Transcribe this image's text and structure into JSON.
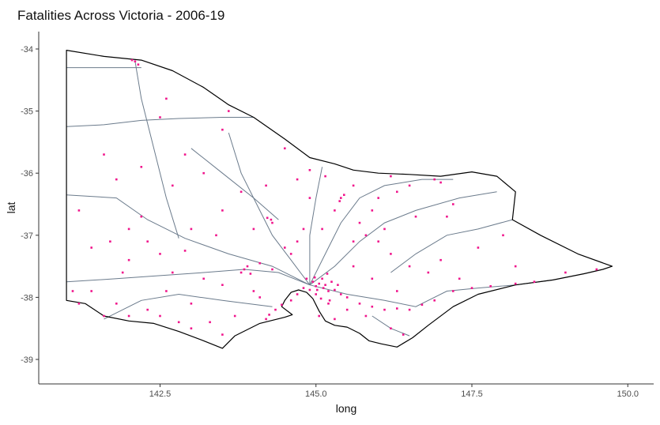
{
  "chart_data": {
    "type": "scatter",
    "title": "Fatalities Across Victoria - 2006-19",
    "xlabel": "long",
    "ylabel": "lat",
    "xlim": [
      40.6,
      150.4
    ],
    "ylim": [
      -39.38,
      -33.72
    ],
    "xticks": [
      142.5,
      145.0,
      147.5,
      150.0
    ],
    "xtick_labels": [
      "142.5",
      "145.0",
      "147.5",
      "150.0"
    ],
    "yticks": [
      -34,
      -35,
      -36,
      -37,
      -38,
      -39
    ],
    "ytick_labels": [
      "-34",
      "-35",
      "-36",
      "-37",
      "-38",
      "-39"
    ],
    "grid": false,
    "colors": {
      "points": "#f0158c",
      "border": "#000000",
      "roads": "#6b7b8c",
      "axis": "#333333"
    },
    "border": [
      [
        141.0,
        -34.02
      ],
      [
        141.6,
        -34.12
      ],
      [
        142.2,
        -34.18
      ],
      [
        142.7,
        -34.35
      ],
      [
        143.2,
        -34.62
      ],
      [
        143.6,
        -34.9
      ],
      [
        144.0,
        -35.1
      ],
      [
        144.5,
        -35.45
      ],
      [
        144.9,
        -35.75
      ],
      [
        145.3,
        -35.85
      ],
      [
        145.6,
        -35.95
      ],
      [
        146.0,
        -36.0
      ],
      [
        146.5,
        -36.02
      ],
      [
        147.0,
        -36.05
      ],
      [
        147.5,
        -35.98
      ],
      [
        147.9,
        -36.05
      ],
      [
        148.2,
        -36.3
      ],
      [
        148.15,
        -36.75
      ],
      [
        148.6,
        -37.0
      ],
      [
        149.2,
        -37.3
      ],
      [
        149.75,
        -37.5
      ],
      [
        149.6,
        -37.55
      ],
      [
        149.3,
        -37.62
      ],
      [
        148.8,
        -37.72
      ],
      [
        148.2,
        -37.8
      ],
      [
        147.6,
        -37.95
      ],
      [
        147.2,
        -38.15
      ],
      [
        146.8,
        -38.45
      ],
      [
        146.55,
        -38.65
      ],
      [
        146.3,
        -38.8
      ],
      [
        146.05,
        -38.75
      ],
      [
        145.85,
        -38.7
      ],
      [
        145.7,
        -38.58
      ],
      [
        145.5,
        -38.48
      ],
      [
        145.3,
        -38.45
      ],
      [
        145.15,
        -38.38
      ],
      [
        145.05,
        -38.22
      ],
      [
        144.95,
        -38.02
      ],
      [
        144.85,
        -37.92
      ],
      [
        144.72,
        -37.88
      ],
      [
        144.6,
        -37.92
      ],
      [
        144.5,
        -38.05
      ],
      [
        144.45,
        -38.15
      ],
      [
        144.62,
        -38.28
      ],
      [
        144.5,
        -38.32
      ],
      [
        144.1,
        -38.42
      ],
      [
        143.7,
        -38.62
      ],
      [
        143.5,
        -38.82
      ],
      [
        143.2,
        -38.7
      ],
      [
        142.8,
        -38.55
      ],
      [
        142.4,
        -38.42
      ],
      [
        142.0,
        -38.38
      ],
      [
        141.6,
        -38.3
      ],
      [
        141.3,
        -38.1
      ],
      [
        141.0,
        -38.05
      ],
      [
        141.0,
        -34.02
      ]
    ],
    "roads": [
      [
        [
          141.0,
          -34.3
        ],
        [
          141.6,
          -34.3
        ],
        [
          142.2,
          -34.3
        ]
      ],
      [
        [
          141.0,
          -35.25
        ],
        [
          141.6,
          -35.22
        ],
        [
          142.2,
          -35.15
        ],
        [
          142.8,
          -35.12
        ],
        [
          143.5,
          -35.1
        ],
        [
          144.0,
          -35.1
        ]
      ],
      [
        [
          141.0,
          -36.35
        ],
        [
          141.8,
          -36.4
        ],
        [
          142.3,
          -36.75
        ],
        [
          142.9,
          -37.05
        ],
        [
          143.6,
          -37.3
        ],
        [
          144.3,
          -37.5
        ],
        [
          144.9,
          -37.8
        ]
      ],
      [
        [
          141.0,
          -37.75
        ],
        [
          141.8,
          -37.7
        ],
        [
          142.5,
          -37.65
        ],
        [
          143.2,
          -37.6
        ],
        [
          143.85,
          -37.55
        ],
        [
          144.4,
          -37.6
        ],
        [
          144.9,
          -37.8
        ]
      ],
      [
        [
          141.6,
          -38.35
        ],
        [
          142.2,
          -38.05
        ],
        [
          142.8,
          -37.95
        ],
        [
          143.5,
          -38.05
        ],
        [
          144.3,
          -38.15
        ]
      ],
      [
        [
          142.1,
          -34.2
        ],
        [
          142.2,
          -34.8
        ],
        [
          142.4,
          -35.6
        ],
        [
          142.6,
          -36.4
        ],
        [
          142.8,
          -37.05
        ]
      ],
      [
        [
          143.6,
          -35.35
        ],
        [
          143.8,
          -36.0
        ],
        [
          144.1,
          -36.6
        ],
        [
          144.3,
          -37.0
        ],
        [
          144.6,
          -37.4
        ],
        [
          144.9,
          -37.8
        ]
      ],
      [
        [
          144.9,
          -37.8
        ],
        [
          145.2,
          -37.2
        ],
        [
          145.4,
          -36.8
        ],
        [
          145.7,
          -36.4
        ],
        [
          146.1,
          -36.2
        ],
        [
          146.7,
          -36.1
        ],
        [
          147.2,
          -36.1
        ]
      ],
      [
        [
          144.9,
          -37.8
        ],
        [
          145.5,
          -37.95
        ],
        [
          146.1,
          -38.05
        ],
        [
          146.6,
          -38.15
        ],
        [
          147.1,
          -37.9
        ],
        [
          147.6,
          -37.85
        ],
        [
          148.2,
          -37.8
        ],
        [
          148.8,
          -37.72
        ]
      ],
      [
        [
          144.9,
          -37.8
        ],
        [
          145.3,
          -37.5
        ],
        [
          145.7,
          -37.1
        ],
        [
          146.1,
          -36.8
        ],
        [
          146.6,
          -36.6
        ],
        [
          147.3,
          -36.4
        ],
        [
          147.9,
          -36.3
        ]
      ],
      [
        [
          145.1,
          -35.9
        ],
        [
          145.0,
          -36.4
        ],
        [
          144.9,
          -37.0
        ],
        [
          144.9,
          -37.8
        ]
      ],
      [
        [
          146.2,
          -37.6
        ],
        [
          146.6,
          -37.3
        ],
        [
          147.1,
          -37.0
        ],
        [
          147.6,
          -36.9
        ],
        [
          148.15,
          -36.75
        ]
      ],
      [
        [
          143.0,
          -35.6
        ],
        [
          143.5,
          -36.0
        ],
        [
          144.0,
          -36.4
        ],
        [
          144.4,
          -36.75
        ]
      ],
      [
        [
          145.9,
          -38.3
        ],
        [
          146.2,
          -38.5
        ],
        [
          146.5,
          -38.62
        ]
      ]
    ],
    "points": [
      [
        145.0,
        -37.82
      ],
      [
        145.05,
        -37.78
      ],
      [
        145.12,
        -37.85
      ],
      [
        144.95,
        -37.75
      ],
      [
        145.2,
        -37.9
      ],
      [
        145.1,
        -37.7
      ],
      [
        144.9,
        -37.88
      ],
      [
        145.25,
        -37.75
      ],
      [
        145.18,
        -37.62
      ],
      [
        144.85,
        -37.7
      ],
      [
        145.3,
        -37.88
      ],
      [
        145.0,
        -37.95
      ],
      [
        145.08,
        -38.02
      ],
      [
        144.98,
        -37.68
      ],
      [
        145.35,
        -37.8
      ],
      [
        145.22,
        -38.05
      ],
      [
        145.4,
        -37.95
      ],
      [
        144.8,
        -37.85
      ],
      [
        145.15,
        -37.8
      ],
      [
        145.02,
        -37.88
      ],
      [
        144.7,
        -37.95
      ],
      [
        144.6,
        -38.05
      ],
      [
        144.45,
        -38.12
      ],
      [
        144.35,
        -38.2
      ],
      [
        144.25,
        -38.28
      ],
      [
        145.05,
        -38.3
      ],
      [
        145.3,
        -38.35
      ],
      [
        145.5,
        -38.2
      ],
      [
        145.7,
        -38.1
      ],
      [
        145.9,
        -38.15
      ],
      [
        146.1,
        -38.2
      ],
      [
        146.3,
        -38.18
      ],
      [
        146.5,
        -38.2
      ],
      [
        146.7,
        -38.12
      ],
      [
        146.9,
        -38.05
      ],
      [
        147.2,
        -37.9
      ],
      [
        147.5,
        -37.85
      ],
      [
        147.8,
        -37.82
      ],
      [
        148.2,
        -37.78
      ],
      [
        148.5,
        -37.75
      ],
      [
        149.0,
        -37.6
      ],
      [
        149.5,
        -37.55
      ],
      [
        144.3,
        -37.55
      ],
      [
        143.85,
        -37.55
      ],
      [
        143.8,
        -37.6
      ],
      [
        143.9,
        -37.5
      ],
      [
        143.95,
        -37.62
      ],
      [
        144.1,
        -37.45
      ],
      [
        144.28,
        -36.75
      ],
      [
        144.3,
        -36.8
      ],
      [
        144.22,
        -36.72
      ],
      [
        145.4,
        -36.4
      ],
      [
        145.45,
        -36.35
      ],
      [
        145.38,
        -36.45
      ],
      [
        146.0,
        -36.4
      ],
      [
        146.3,
        -36.3
      ],
      [
        146.9,
        -36.1
      ],
      [
        147.0,
        -36.15
      ],
      [
        146.2,
        -36.05
      ],
      [
        142.5,
        -37.3
      ],
      [
        142.3,
        -37.1
      ],
      [
        142.0,
        -36.9
      ],
      [
        142.2,
        -36.7
      ],
      [
        141.9,
        -37.6
      ],
      [
        142.0,
        -38.3
      ],
      [
        141.6,
        -38.3
      ],
      [
        142.5,
        -38.3
      ],
      [
        143.0,
        -38.5
      ],
      [
        143.5,
        -38.6
      ],
      [
        143.3,
        -38.4
      ],
      [
        142.8,
        -38.4
      ],
      [
        143.5,
        -37.8
      ],
      [
        143.2,
        -37.7
      ],
      [
        144.6,
        -37.3
      ],
      [
        144.7,
        -37.1
      ],
      [
        144.8,
        -36.9
      ],
      [
        145.6,
        -37.1
      ],
      [
        145.8,
        -37.0
      ],
      [
        146.2,
        -37.3
      ],
      [
        146.5,
        -37.5
      ],
      [
        146.8,
        -37.6
      ],
      [
        147.3,
        -37.7
      ],
      [
        145.3,
        -36.6
      ],
      [
        145.7,
        -36.8
      ],
      [
        146.1,
        -36.9
      ],
      [
        144.9,
        -36.4
      ],
      [
        144.7,
        -36.1
      ],
      [
        144.2,
        -36.2
      ],
      [
        143.8,
        -36.3
      ],
      [
        143.5,
        -36.6
      ],
      [
        143.0,
        -36.9
      ],
      [
        142.7,
        -37.6
      ],
      [
        142.0,
        -37.4
      ],
      [
        141.4,
        -37.2
      ],
      [
        141.2,
        -36.6
      ],
      [
        141.6,
        -35.7
      ],
      [
        141.8,
        -36.1
      ],
      [
        142.2,
        -35.9
      ],
      [
        142.1,
        -34.2
      ],
      [
        142.15,
        -34.25
      ],
      [
        142.05,
        -34.18
      ],
      [
        142.6,
        -34.8
      ],
      [
        142.5,
        -35.1
      ],
      [
        143.5,
        -35.3
      ],
      [
        143.6,
        -35.0
      ],
      [
        144.5,
        -35.6
      ],
      [
        143.4,
        -37.0
      ],
      [
        142.9,
        -37.25
      ],
      [
        144.0,
        -37.9
      ],
      [
        144.1,
        -38.0
      ],
      [
        145.6,
        -37.5
      ],
      [
        145.9,
        -37.7
      ],
      [
        146.3,
        -37.9
      ],
      [
        147.0,
        -37.4
      ],
      [
        147.6,
        -37.2
      ],
      [
        148.0,
        -37.0
      ],
      [
        146.6,
        -36.7
      ],
      [
        147.2,
        -36.5
      ],
      [
        145.2,
        -38.1
      ],
      [
        145.5,
        -38.0
      ],
      [
        145.8,
        -38.3
      ],
      [
        146.2,
        -38.5
      ],
      [
        146.4,
        -38.6
      ],
      [
        141.2,
        -38.1
      ],
      [
        141.4,
        -37.9
      ],
      [
        141.8,
        -38.1
      ],
      [
        142.3,
        -38.2
      ],
      [
        143.7,
        -38.3
      ],
      [
        144.2,
        -38.35
      ],
      [
        144.0,
        -36.9
      ],
      [
        144.5,
        -37.2
      ],
      [
        145.9,
        -36.6
      ],
      [
        146.5,
        -36.2
      ],
      [
        145.6,
        -36.2
      ],
      [
        145.15,
        -36.05
      ],
      [
        144.9,
        -35.95
      ],
      [
        142.7,
        -36.2
      ],
      [
        143.2,
        -36.0
      ],
      [
        142.9,
        -35.7
      ],
      [
        143.0,
        -38.1
      ],
      [
        142.6,
        -37.9
      ],
      [
        141.7,
        -37.1
      ],
      [
        141.1,
        -37.9
      ],
      [
        147.1,
        -36.7
      ],
      [
        148.2,
        -37.5
      ],
      [
        146.0,
        -37.1
      ],
      [
        145.1,
        -36.9
      ]
    ]
  }
}
